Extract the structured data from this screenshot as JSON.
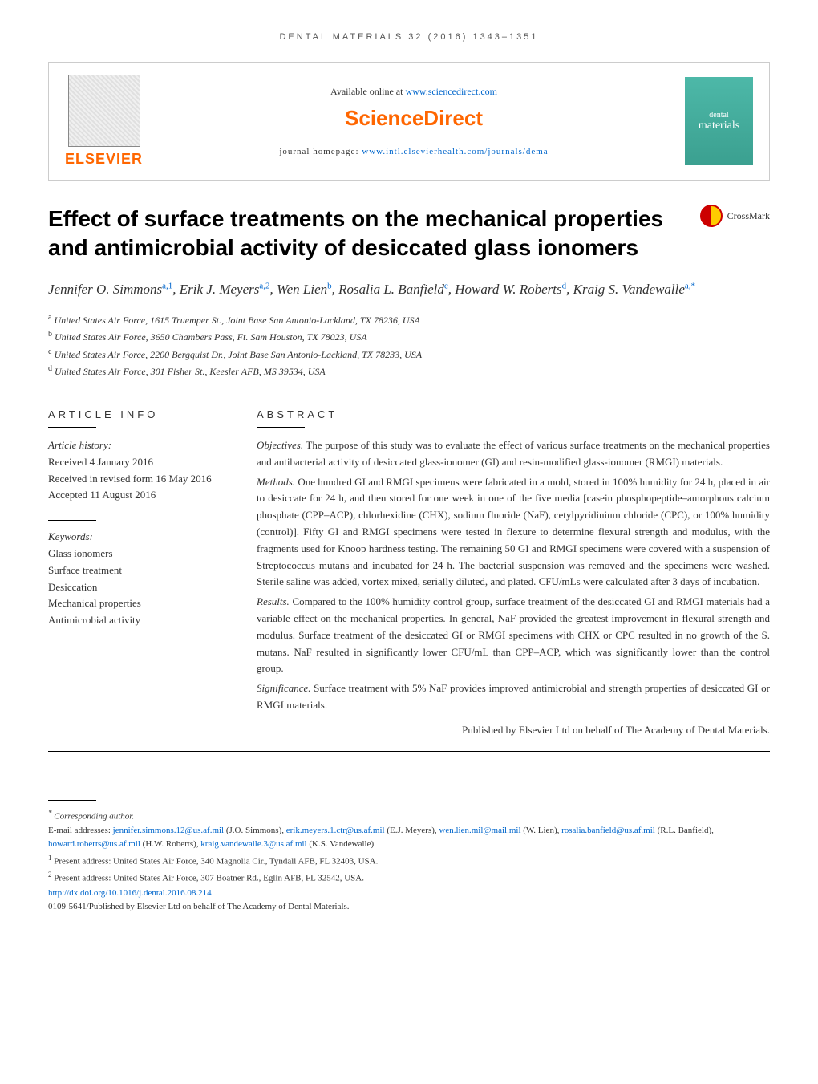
{
  "running_header": "DENTAL MATERIALS 32 (2016) 1343–1351",
  "header": {
    "available_text": "Available online at ",
    "available_link": "www.sciencedirect.com",
    "sciencedirect": "ScienceDirect",
    "homepage_label": "journal homepage: ",
    "homepage_link": "www.intl.elsevierhealth.com/journals/dema",
    "elsevier": "ELSEVIER",
    "cover_small": "dental",
    "cover_large": "materials"
  },
  "title": "Effect of surface treatments on the mechanical properties and antimicrobial activity of desiccated glass ionomers",
  "crossmark": "CrossMark",
  "authors_html": "Jennifer O. Simmons|a,1|, Erik J. Meyers|a,2|, Wen Lien|b|, Rosalia L. Banfield|c|, Howard W. Roberts|d|, Kraig S. Vandewalle|a,*|",
  "authors": [
    {
      "name": "Jennifer O. Simmons",
      "sup": "a,1"
    },
    {
      "name": "Erik J. Meyers",
      "sup": "a,2"
    },
    {
      "name": "Wen Lien",
      "sup": "b"
    },
    {
      "name": "Rosalia L. Banfield",
      "sup": "c"
    },
    {
      "name": "Howard W. Roberts",
      "sup": "d"
    },
    {
      "name": "Kraig S. Vandewalle",
      "sup": "a,*"
    }
  ],
  "affiliations": [
    {
      "sup": "a",
      "text": "United States Air Force, 1615 Truemper St., Joint Base San Antonio-Lackland, TX 78236, USA"
    },
    {
      "sup": "b",
      "text": "United States Air Force, 3650 Chambers Pass, Ft. Sam Houston, TX 78023, USA"
    },
    {
      "sup": "c",
      "text": "United States Air Force, 2200 Bergquist Dr., Joint Base San Antonio-Lackland, TX 78233, USA"
    },
    {
      "sup": "d",
      "text": "United States Air Force, 301 Fisher St., Keesler AFB, MS 39534, USA"
    }
  ],
  "article_info": {
    "heading": "ARTICLE INFO",
    "history_label": "Article history:",
    "received": "Received 4 January 2016",
    "revised": "Received in revised form 16 May 2016",
    "accepted": "Accepted 11 August 2016",
    "keywords_label": "Keywords:",
    "keywords": [
      "Glass ionomers",
      "Surface treatment",
      "Desiccation",
      "Mechanical properties",
      "Antimicrobial activity"
    ]
  },
  "abstract": {
    "heading": "ABSTRACT",
    "objectives_label": "Objectives.",
    "objectives": " The purpose of this study was to evaluate the effect of various surface treatments on the mechanical properties and antibacterial activity of desiccated glass-ionomer (GI) and resin-modified glass-ionomer (RMGI) materials.",
    "methods_label": "Methods.",
    "methods": " One hundred GI and RMGI specimens were fabricated in a mold, stored in 100% humidity for 24 h, placed in air to desiccate for 24 h, and then stored for one week in one of the five media [casein phosphopeptide–amorphous calcium phosphate (CPP–ACP), chlorhexidine (CHX), sodium fluoride (NaF), cetylpyridinium chloride (CPC), or 100% humidity (control)]. Fifty GI and RMGI specimens were tested in flexure to determine flexural strength and modulus, with the fragments used for Knoop hardness testing. The remaining 50 GI and RMGI specimens were covered with a suspension of Streptococcus mutans and incubated for 24 h. The bacterial suspension was removed and the specimens were washed. Sterile saline was added, vortex mixed, serially diluted, and plated. CFU/mLs were calculated after 3 days of incubation.",
    "results_label": "Results.",
    "results": " Compared to the 100% humidity control group, surface treatment of the desiccated GI and RMGI materials had a variable effect on the mechanical properties. In general, NaF provided the greatest improvement in flexural strength and modulus. Surface treatment of the desiccated GI or RMGI specimens with CHX or CPC resulted in no growth of the S. mutans. NaF resulted in significantly lower CFU/mL than CPP–ACP, which was significantly lower than the control group.",
    "significance_label": "Significance.",
    "significance": " Surface treatment with 5% NaF provides improved antimicrobial and strength properties of desiccated GI or RMGI materials.",
    "copyright": "Published by Elsevier Ltd on behalf of The Academy of Dental Materials."
  },
  "footnotes": {
    "corresponding": "Corresponding author.",
    "emails_label": "E-mail addresses: ",
    "emails": [
      {
        "email": "jennifer.simmons.12@us.af.mil",
        "person": "(J.O. Simmons)"
      },
      {
        "email": "erik.meyers.1.ctr@us.af.mil",
        "person": "(E.J. Meyers)"
      },
      {
        "email": "wen.lien.mil@mail.mil",
        "person": "(W. Lien)"
      },
      {
        "email": "rosalia.banfield@us.af.mil",
        "person": "(R.L. Banfield)"
      },
      {
        "email": "howard.roberts@us.af.mil",
        "person": "(H.W. Roberts)"
      },
      {
        "email": "kraig.vandewalle.3@us.af.mil",
        "person": "(K.S. Vandewalle)"
      }
    ],
    "present1_sup": "1",
    "present1": " Present address: United States Air Force, 340 Magnolia Cir., Tyndall AFB, FL 32403, USA.",
    "present2_sup": "2",
    "present2": " Present address: United States Air Force, 307 Boatner Rd., Eglin AFB, FL 32542, USA.",
    "doi": "http://dx.doi.org/10.1016/j.dental.2016.08.214",
    "issn_line": "0109-5641/Published by Elsevier Ltd on behalf of The Academy of Dental Materials."
  },
  "colors": {
    "orange": "#ff6600",
    "link_blue": "#0066cc",
    "teal": "#4db8a8",
    "crossmark_red": "#cc0000",
    "crossmark_yellow": "#ffcc00",
    "text": "#333333"
  }
}
